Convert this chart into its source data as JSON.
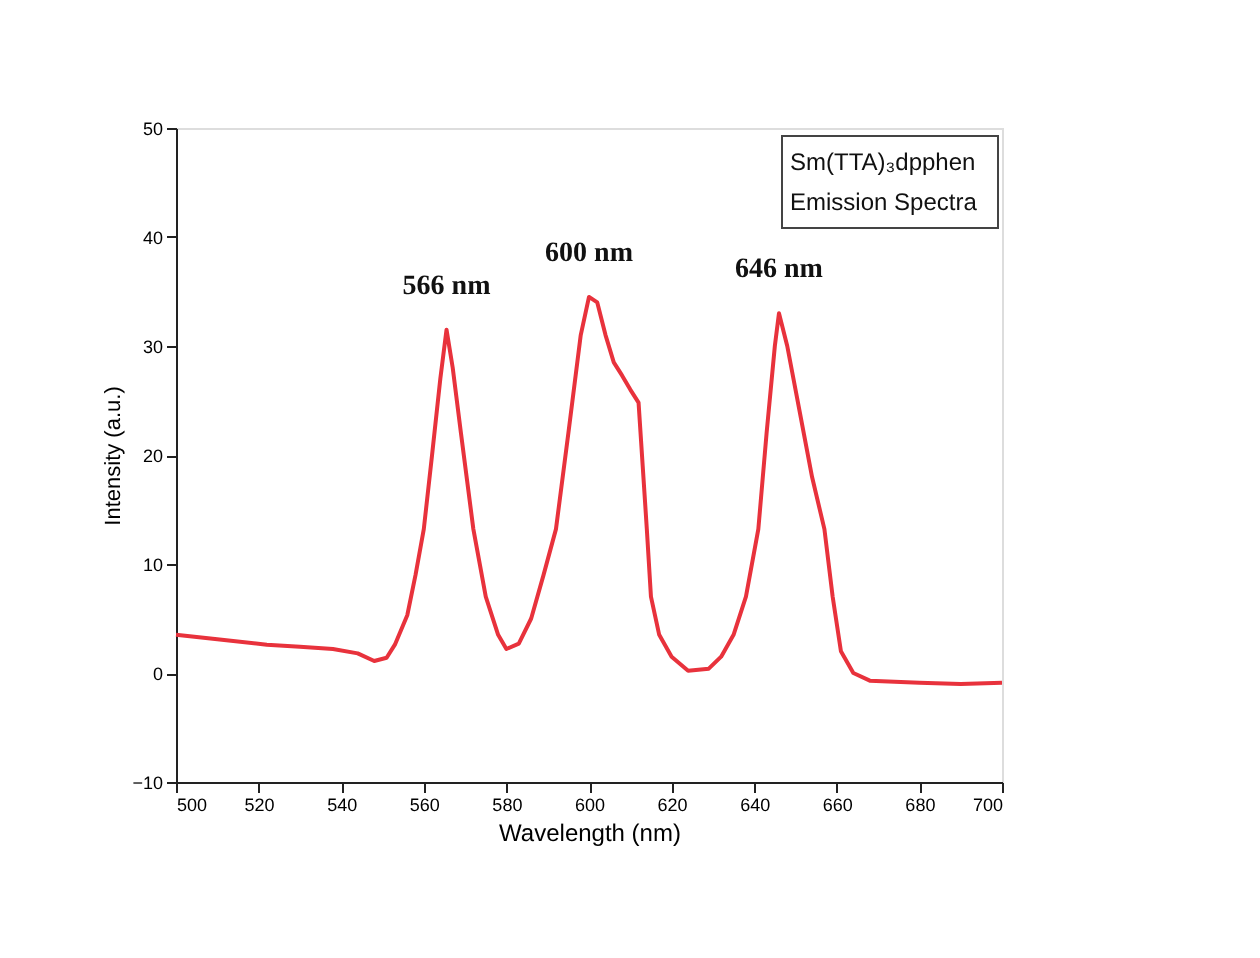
{
  "chart_data": {
    "type": "line",
    "xlabel": "Wavelength (nm)",
    "ylabel": "Intensity (a.u.)",
    "x": [
      500,
      510,
      522,
      530,
      538,
      544,
      548,
      551,
      553,
      556,
      558,
      560,
      562,
      564,
      565.5,
      567,
      569,
      572,
      575,
      578,
      580,
      583,
      586,
      589,
      592,
      595,
      598,
      600,
      602,
      604,
      606,
      608,
      610,
      612,
      613,
      614,
      615,
      617,
      620,
      624,
      629,
      632,
      635,
      638,
      641,
      643,
      645,
      646,
      648,
      651,
      654,
      657,
      659,
      661,
      664,
      668,
      680,
      690,
      700
    ],
    "series": [
      {
        "color": "#e8323c",
        "values": [
          3.5,
          3.1,
          2.6,
          2.4,
          2.2,
          1.8,
          1.1,
          1.4,
          2.6,
          5.3,
          9,
          13.2,
          20,
          27,
          31.5,
          28,
          22,
          13.2,
          7,
          3.5,
          2.2,
          2.7,
          5,
          9,
          13.2,
          22,
          31,
          34.5,
          34,
          31,
          28.5,
          27.3,
          26,
          24.8,
          19,
          13.2,
          7,
          3.5,
          1.5,
          0.2,
          0.4,
          1.5,
          3.5,
          7,
          13.2,
          22,
          30,
          33,
          30,
          24,
          18,
          13.2,
          7,
          2,
          0,
          -0.7,
          -0.9,
          -1,
          -0.9
        ]
      }
    ],
    "xlim": [
      500,
      700
    ],
    "xticks": [
      500,
      520,
      540,
      560,
      580,
      600,
      620,
      640,
      660,
      680,
      700
    ],
    "ylim": [
      -10,
      50
    ],
    "yticks": [
      -10,
      0,
      10,
      20,
      30,
      40,
      50
    ],
    "grid": false,
    "marker": "none",
    "line_style": "solid",
    "annotations": [
      "Sm(TTA)₃dpphen",
      "Emission Spectra",
      {
        "text": "566 nm",
        "x": 565.5,
        "y": 31.5
      },
      {
        "text": "600 nm",
        "x": 600,
        "y": 34.5
      },
      {
        "text": "646 nm",
        "x": 646,
        "y": 33
      }
    ]
  }
}
